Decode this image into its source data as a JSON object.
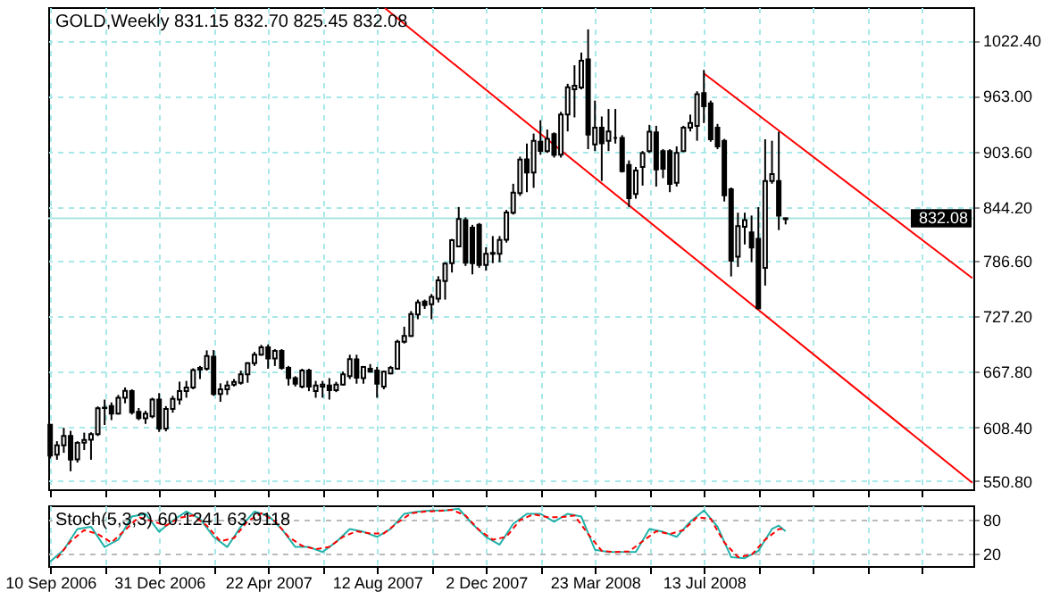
{
  "chart_data": [
    {
      "type": "candlestick",
      "title": "GOLD,Weekly  831.15 832.70 825.45 832.08",
      "x": [
        "2006-09-10",
        "2006-09-17",
        "2006-09-24",
        "2006-10-01",
        "2006-10-08",
        "2006-10-15",
        "2006-10-22",
        "2006-10-29",
        "2006-11-05",
        "2006-11-12",
        "2006-11-19",
        "2006-11-26",
        "2006-12-03",
        "2006-12-10",
        "2006-12-17",
        "2006-12-24",
        "2006-12-31",
        "2007-01-07",
        "2007-01-14",
        "2007-01-21",
        "2007-01-28",
        "2007-02-04",
        "2007-02-11",
        "2007-02-18",
        "2007-02-25",
        "2007-03-04",
        "2007-03-11",
        "2007-03-18",
        "2007-03-25",
        "2007-04-01",
        "2007-04-08",
        "2007-04-15",
        "2007-04-22",
        "2007-04-29",
        "2007-05-06",
        "2007-05-13",
        "2007-05-20",
        "2007-05-27",
        "2007-06-03",
        "2007-06-10",
        "2007-06-17",
        "2007-06-24",
        "2007-07-01",
        "2007-07-08",
        "2007-07-15",
        "2007-07-22",
        "2007-07-29",
        "2007-08-05",
        "2007-08-12",
        "2007-08-19",
        "2007-08-26",
        "2007-09-02",
        "2007-09-09",
        "2007-09-16",
        "2007-09-23",
        "2007-09-30",
        "2007-10-07",
        "2007-10-14",
        "2007-10-21",
        "2007-10-28",
        "2007-11-04",
        "2007-11-11",
        "2007-11-18",
        "2007-11-25",
        "2007-12-02",
        "2007-12-09",
        "2007-12-16",
        "2007-12-23",
        "2007-12-30",
        "2008-01-06",
        "2008-01-13",
        "2008-01-20",
        "2008-01-27",
        "2008-02-03",
        "2008-02-10",
        "2008-02-17",
        "2008-02-24",
        "2008-03-02",
        "2008-03-09",
        "2008-03-16",
        "2008-03-23",
        "2008-03-30",
        "2008-04-06",
        "2008-04-13",
        "2008-04-20",
        "2008-04-27",
        "2008-05-04",
        "2008-05-11",
        "2008-05-18",
        "2008-05-25",
        "2008-06-01",
        "2008-06-08",
        "2008-06-15",
        "2008-06-22",
        "2008-06-29",
        "2008-07-06",
        "2008-07-13",
        "2008-07-20",
        "2008-07-27",
        "2008-08-03",
        "2008-08-10",
        "2008-08-17",
        "2008-08-24",
        "2008-08-31",
        "2008-09-07",
        "2008-09-14",
        "2008-09-21",
        "2008-09-28",
        "2008-10-05"
      ],
      "ohlc": [
        [
          611,
          612,
          575,
          578
        ],
        [
          579,
          593.5,
          573.6,
          589
        ],
        [
          589,
          607.7,
          581,
          599
        ],
        [
          599,
          604.6,
          561.3,
          573.7
        ],
        [
          574,
          593.5,
          570.6,
          591.6
        ],
        [
          592,
          602.6,
          584,
          594.7
        ],
        [
          595,
          603,
          573.6,
          600.9
        ],
        [
          601,
          630.7,
          599,
          628.8
        ],
        [
          629,
          638,
          610.8,
          629.5
        ],
        [
          631,
          635,
          616,
          623
        ],
        [
          623,
          643,
          622,
          639.9
        ],
        [
          640,
          651,
          634,
          647.3
        ],
        [
          647,
          649,
          622,
          624.5
        ],
        [
          625,
          629,
          616,
          618.2
        ],
        [
          618,
          626,
          612,
          623
        ],
        [
          620,
          640,
          618,
          638
        ],
        [
          638,
          644.9,
          603.4,
          607
        ],
        [
          607,
          631,
          604,
          628.1
        ],
        [
          628,
          642,
          624,
          638.7
        ],
        [
          638,
          657.2,
          632.5,
          647.2
        ],
        [
          647,
          658,
          640,
          651
        ],
        [
          651,
          671.5,
          649,
          669.6
        ],
        [
          670,
          674,
          660,
          672
        ],
        [
          671,
          690.7,
          669,
          684.5
        ],
        [
          684,
          691,
          642,
          644.1
        ],
        [
          644,
          655.4,
          635.6,
          649
        ],
        [
          649,
          658,
          643,
          653
        ],
        [
          654,
          660,
          652,
          657
        ],
        [
          656,
          669,
          654,
          665
        ],
        [
          665,
          678,
          656,
          677
        ],
        [
          677,
          689,
          674,
          686
        ],
        [
          686,
          696.6,
          685,
          694
        ],
        [
          694,
          697,
          671,
          682
        ],
        [
          682,
          692,
          674,
          690
        ],
        [
          690,
          692,
          670,
          672
        ],
        [
          672,
          674,
          653,
          661
        ],
        [
          661,
          663,
          652,
          655
        ],
        [
          652,
          671,
          650,
          669
        ],
        [
          669,
          671,
          647,
          652
        ],
        [
          647,
          658,
          640,
          653
        ],
        [
          652,
          658,
          640,
          654
        ],
        [
          653,
          661,
          638,
          648
        ],
        [
          648,
          657,
          646,
          654
        ],
        [
          654,
          668,
          653,
          665
        ],
        [
          663,
          686,
          660,
          681.3
        ],
        [
          681,
          686,
          655,
          661.5
        ],
        [
          661,
          674,
          655,
          673
        ],
        [
          671,
          676,
          667,
          668
        ],
        [
          669,
          673,
          640,
          655
        ],
        [
          652,
          669,
          649,
          668
        ],
        [
          666,
          674,
          665,
          672
        ],
        [
          671,
          702,
          670,
          700
        ],
        [
          700,
          716,
          698,
          706
        ],
        [
          706,
          732.7,
          705,
          729.6
        ],
        [
          729,
          745,
          724,
          742
        ],
        [
          743,
          745,
          735,
          739
        ],
        [
          740,
          751,
          724,
          748
        ],
        [
          746,
          770,
          742,
          765.5
        ],
        [
          765,
          785,
          745,
          783.5
        ],
        [
          784,
          810,
          774,
          808.6
        ],
        [
          802,
          844.1,
          801,
          831.2
        ],
        [
          830,
          833,
          781,
          784.4
        ],
        [
          822,
          825,
          772,
          784
        ],
        [
          825,
          827,
          779,
          782
        ],
        [
          782,
          801,
          776,
          794
        ],
        [
          794,
          813,
          784,
          795
        ],
        [
          794,
          813,
          785,
          808.8
        ],
        [
          809,
          841,
          806,
          838.3
        ],
        [
          838,
          869,
          836,
          859.6
        ],
        [
          859,
          898,
          856,
          894.9
        ],
        [
          895,
          912,
          860,
          881
        ],
        [
          881,
          922.7,
          864.6,
          915
        ],
        [
          914,
          937,
          900,
          904.2
        ],
        [
          904,
          927,
          902,
          917
        ],
        [
          922,
          924,
          897,
          899.8
        ],
        [
          900,
          946,
          897,
          943.2
        ],
        [
          943,
          976,
          925,
          972.3
        ],
        [
          970,
          995.8,
          940,
          974
        ],
        [
          972,
          1009.4,
          970,
          1000.7
        ],
        [
          1002,
          1034.2,
          906,
          921.5
        ],
        [
          911,
          958,
          904,
          929
        ],
        [
          929,
          941,
          872,
          912.2
        ],
        [
          915,
          949,
          904,
          925
        ],
        [
          918,
          949,
          912,
          918
        ],
        [
          918,
          921,
          881,
          882.5
        ],
        [
          889,
          894,
          844.1,
          853.4
        ],
        [
          858,
          887,
          853,
          883.1
        ],
        [
          887,
          904,
          867,
          901.7
        ],
        [
          904,
          932,
          902,
          924.6
        ],
        [
          924,
          931,
          866,
          884.4
        ],
        [
          904,
          906,
          875,
          885
        ],
        [
          904,
          906,
          860,
          868.9
        ],
        [
          870,
          909,
          866,
          902
        ],
        [
          904,
          931,
          903,
          928.9
        ],
        [
          929,
          943,
          925,
          934
        ],
        [
          931,
          968,
          915,
          964.8
        ],
        [
          966,
          990.8,
          934,
          952
        ],
        [
          955,
          958,
          914,
          916.6
        ],
        [
          929,
          933,
          906,
          909
        ],
        [
          915,
          917,
          850,
          856.5
        ],
        [
          863,
          865,
          769.8,
          786.6
        ],
        [
          791,
          838,
          780,
          823.7
        ],
        [
          823,
          838,
          804,
          830
        ],
        [
          817,
          835,
          785,
          800.8
        ],
        [
          810,
          844,
          734.6,
          735.8
        ],
        [
          779,
          916.6,
          760,
          872
        ],
        [
          872,
          915,
          869,
          879.4
        ],
        [
          872,
          924.6,
          819.4,
          834.8
        ],
        [
          831.15,
          832.7,
          825.45,
          832.08
        ]
      ],
      "series": [
        {
          "type": "line",
          "color": "#ff0000",
          "x": [
            "2007-08-20",
            "2009-04-15"
          ],
          "values": [
            1057,
            549
          ]
        },
        {
          "type": "line",
          "color": "#ff0000",
          "x": [
            "2008-07-13",
            "2009-04-15"
          ],
          "values": [
            987,
            768
          ]
        }
      ],
      "ref_lines": [
        {
          "axis": "y",
          "value": 832.08,
          "label": "832.08",
          "color": "#a8e4e0"
        }
      ],
      "xlim": [
        "2006-09-08",
        "2009-04-16"
      ],
      "ylim": [
        542,
        1058
      ],
      "yticks": [
        {
          "value": 550.8,
          "label": "550.80"
        },
        {
          "value": 608.4,
          "label": "608.40"
        },
        {
          "value": 667.8,
          "label": "667.80"
        },
        {
          "value": 727.2,
          "label": "727.20"
        },
        {
          "value": 786.6,
          "label": "786.60"
        },
        {
          "value": 844.2,
          "label": "844.20"
        },
        {
          "value": 903.6,
          "label": "903.60"
        },
        {
          "value": 963,
          "label": "963.00"
        },
        {
          "value": 1022.4,
          "label": "1022.40"
        }
      ],
      "grid": true,
      "tick_labels": "y"
    },
    {
      "type": "line",
      "title": "Stoch(5,3,3) 60.1241 63.9118",
      "series": [
        {
          "color": "#20b2aa",
          "line_style": "solid",
          "x": [
            "2006-09-10",
            "2006-09-24",
            "2006-10-08",
            "2006-10-22",
            "2006-11-05",
            "2006-11-19",
            "2006-12-03",
            "2006-12-17",
            "2006-12-31",
            "2007-01-14",
            "2007-01-28",
            "2007-02-11",
            "2007-02-25",
            "2007-03-11",
            "2007-03-25",
            "2007-04-08",
            "2007-04-22",
            "2007-05-06",
            "2007-05-20",
            "2007-06-03",
            "2007-06-17",
            "2007-07-01",
            "2007-07-15",
            "2007-07-29",
            "2007-08-12",
            "2007-08-26",
            "2007-09-09",
            "2007-09-23",
            "2007-10-07",
            "2007-10-21",
            "2007-11-04",
            "2007-11-18",
            "2007-12-02",
            "2007-12-16",
            "2007-12-30",
            "2008-01-13",
            "2008-01-27",
            "2008-02-10",
            "2008-02-24",
            "2008-03-09",
            "2008-03-23",
            "2008-04-06",
            "2008-04-20",
            "2008-05-04",
            "2008-05-18",
            "2008-06-01",
            "2008-06-15",
            "2008-06-29",
            "2008-07-13",
            "2008-07-27",
            "2008-08-10",
            "2008-08-24",
            "2008-09-07",
            "2008-09-21",
            "2008-09-28",
            "2008-10-05"
          ],
          "values": [
            6,
            27,
            64,
            68,
            32,
            45,
            86,
            91,
            59,
            79,
            95,
            82,
            50,
            32,
            68,
            95,
            88,
            64,
            32,
            32,
            23,
            41,
            64,
            59,
            50,
            64,
            91,
            95,
            97,
            97,
            100,
            73,
            50,
            36,
            73,
            91,
            91,
            77,
            91,
            86,
            27,
            23,
            23,
            23,
            64,
            59,
            50,
            77,
            97,
            68,
            14,
            12,
            25,
            64,
            70,
            60
          ]
        },
        {
          "color": "#ff0000",
          "line_style": "dashed",
          "x": [
            "2006-09-17",
            "2006-10-01",
            "2006-10-15",
            "2006-10-29",
            "2006-11-12",
            "2006-11-26",
            "2006-12-10",
            "2006-12-24",
            "2007-01-07",
            "2007-01-21",
            "2007-02-04",
            "2007-02-18",
            "2007-03-04",
            "2007-03-18",
            "2007-04-01",
            "2007-04-15",
            "2007-04-29",
            "2007-05-13",
            "2007-05-27",
            "2007-06-10",
            "2007-06-24",
            "2007-07-08",
            "2007-07-22",
            "2007-08-05",
            "2007-08-19",
            "2007-09-02",
            "2007-09-16",
            "2007-09-30",
            "2007-10-14",
            "2007-10-28",
            "2007-11-11",
            "2007-11-25",
            "2007-12-09",
            "2007-12-23",
            "2008-01-06",
            "2008-01-20",
            "2008-02-03",
            "2008-02-17",
            "2008-03-02",
            "2008-03-16",
            "2008-03-30",
            "2008-04-13",
            "2008-04-27",
            "2008-05-11",
            "2008-05-25",
            "2008-06-08",
            "2008-06-22",
            "2008-07-06",
            "2008-07-20",
            "2008-08-03",
            "2008-08-17",
            "2008-08-31",
            "2008-09-14",
            "2008-09-28",
            "2008-10-05"
          ],
          "values": [
            12,
            42,
            62,
            55,
            40,
            62,
            85,
            78,
            70,
            84,
            88,
            70,
            42,
            48,
            78,
            92,
            78,
            50,
            34,
            28,
            32,
            50,
            60,
            56,
            56,
            75,
            92,
            95,
            96,
            98,
            88,
            62,
            45,
            50,
            80,
            90,
            85,
            85,
            88,
            55,
            25,
            23,
            24,
            42,
            60,
            55,
            62,
            85,
            82,
            40,
            14,
            18,
            45,
            64,
            64
          ]
        }
      ],
      "xlim": [
        "2006-09-08",
        "2009-04-16"
      ],
      "xticks": [
        {
          "value": "2006-09-10",
          "label": "10 Sep 2006"
        },
        {
          "value": "2006-11-05",
          "label": null
        },
        {
          "value": "2006-12-31",
          "label": "31 Dec 2006"
        },
        {
          "value": "2007-02-25",
          "label": null
        },
        {
          "value": "2007-04-22",
          "label": "22 Apr 2007"
        },
        {
          "value": "2007-06-17",
          "label": null
        },
        {
          "value": "2007-08-12",
          "label": "12 Aug 2007"
        },
        {
          "value": "2007-10-07",
          "label": null
        },
        {
          "value": "2007-12-02",
          "label": "2 Dec 2007"
        },
        {
          "value": "2008-01-27",
          "label": null
        },
        {
          "value": "2008-03-23",
          "label": "23 Mar 2008"
        },
        {
          "value": "2008-05-18",
          "label": null
        },
        {
          "value": "2008-07-13",
          "label": "13 Jul 2008"
        },
        {
          "value": "2008-09-07",
          "label": null
        },
        {
          "value": "2008-11-02",
          "label": null
        },
        {
          "value": "2008-12-28",
          "label": null
        },
        {
          "value": "2009-02-22",
          "label": null
        }
      ],
      "ylim": [
        -2,
        106
      ],
      "yticks": [
        20,
        80
      ],
      "grid": true
    }
  ]
}
